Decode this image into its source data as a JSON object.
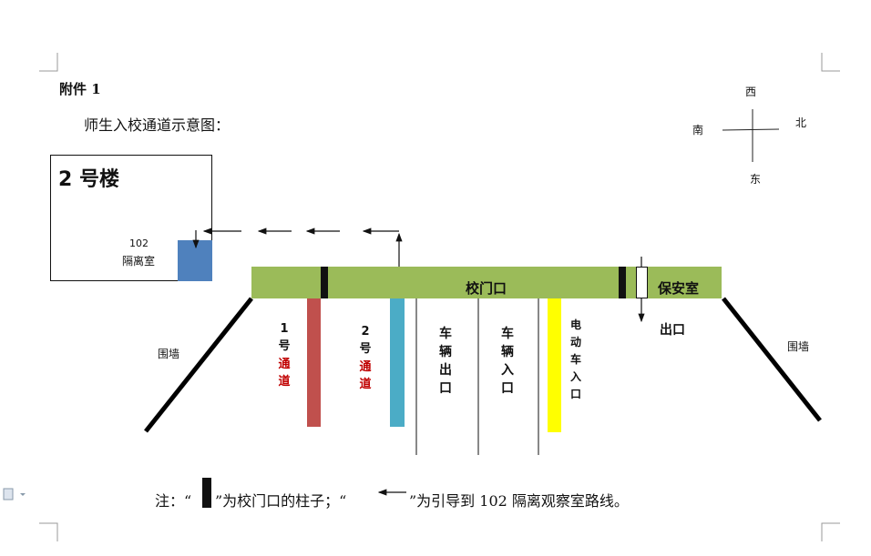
{
  "attachment_label": "附件 1",
  "title": "师生入校通道示意图：",
  "compass": {
    "west": "西",
    "north": "北",
    "south": "南",
    "east": "东"
  },
  "building": {
    "name": "2 号楼",
    "room_number": "102",
    "room_name": "隔离室"
  },
  "gate": {
    "label": "校门口",
    "security_room": "保安室",
    "exit_label": "出口"
  },
  "lanes": [
    {
      "number": "1号",
      "name": "通道",
      "color": "#c0504d"
    },
    {
      "number": "2号",
      "name": "通道",
      "color": "#4bacc6"
    },
    {
      "label": "车辆出口"
    },
    {
      "label": "车辆入口"
    },
    {
      "label": "电动车入口",
      "color": "#ffff00"
    }
  ],
  "wall_label": "围墙",
  "note": {
    "prefix": "注：“",
    "part2": "”为校门口的柱子；“",
    "part3": "”为引导到 102 隔离观察室路线。"
  },
  "colors": {
    "gate_bar": "#9bbb59",
    "room": "#4f81bd",
    "lane_name": "#c00000"
  }
}
